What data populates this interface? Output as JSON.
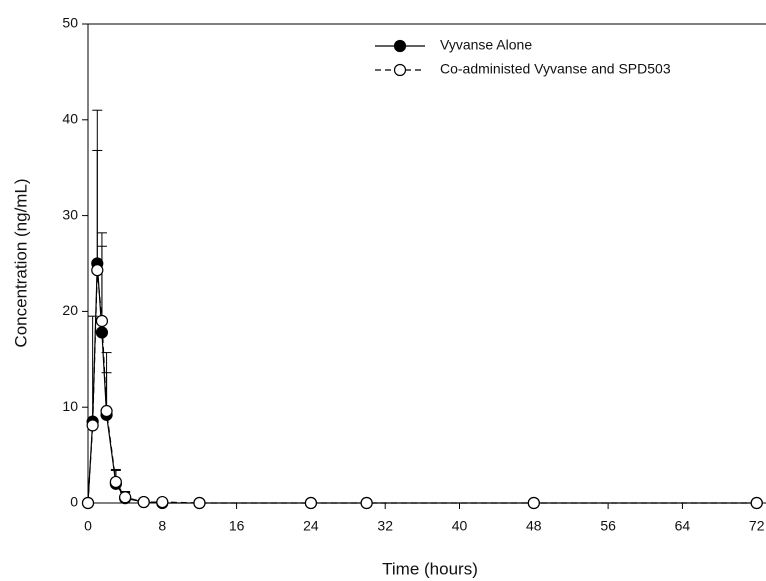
{
  "chart_data": {
    "type": "line",
    "x_label": "Time (hours)",
    "y_label": "Concentration (ng/mL)",
    "x": [
      0,
      0.5,
      1,
      1.5,
      2,
      3,
      4,
      6,
      8,
      12,
      24,
      30,
      48,
      72
    ],
    "series": [
      {
        "name": "Vyvanse Alone",
        "color": "#000000",
        "marker_fill": "#000000",
        "dash": false,
        "values": [
          0,
          8.5,
          25,
          17.8,
          9.2,
          2,
          0.5,
          0.1,
          0,
          0,
          0,
          0,
          0,
          0
        ],
        "errors": [
          0,
          11,
          16,
          9,
          6.5,
          1.5,
          0.7,
          0,
          0,
          0,
          0,
          0,
          0,
          0
        ]
      },
      {
        "name": "Co-administed Vyvanse and SPD503",
        "color": "#000000",
        "marker_fill": "#ffffff",
        "dash": true,
        "values": [
          0,
          8.1,
          24.3,
          19,
          9.6,
          2.2,
          0.6,
          0.1,
          0.1,
          0,
          0,
          0,
          0,
          0
        ],
        "errors": [
          0,
          0,
          12.5,
          9.2,
          4,
          1.2,
          0.5,
          0,
          0,
          0,
          0,
          0,
          0,
          0
        ]
      }
    ],
    "xlim": [
      0,
      73
    ],
    "ylim": [
      0,
      50
    ],
    "xticks": [
      0,
      8,
      16,
      24,
      32,
      40,
      48,
      56,
      64,
      72
    ],
    "yticks": [
      0,
      10,
      20,
      30,
      40,
      50
    ],
    "legend": "upper right",
    "grid": false
  }
}
